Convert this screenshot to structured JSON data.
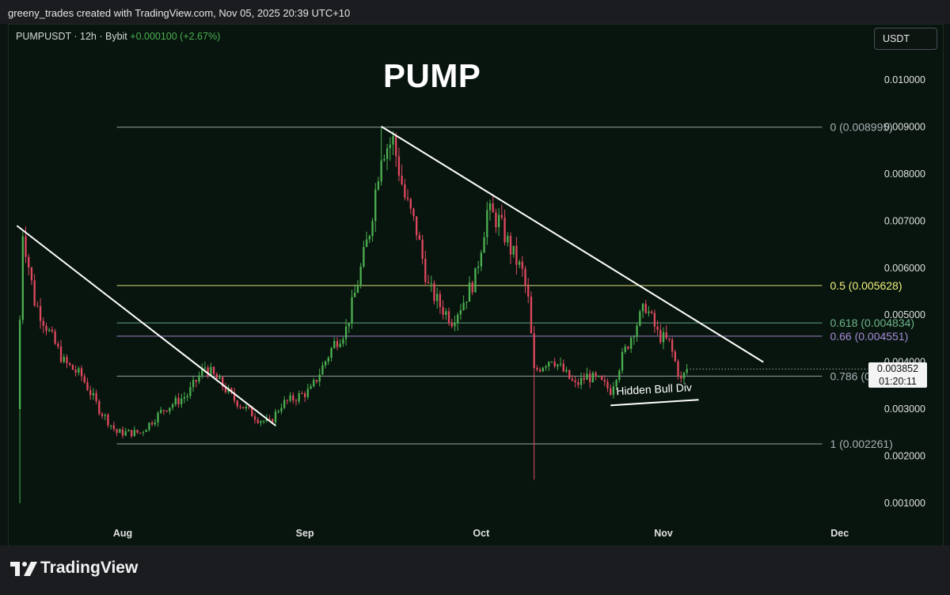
{
  "header": {
    "credit": "greeny_trades created with TradingView.com, Nov 05, 2025 20:39 UTC+10"
  },
  "symbol": {
    "label": "PUMPUSDT · 12h · Bybit",
    "change": "+0.000100 (+2.67%)"
  },
  "currency_button": "USDT",
  "current_price": {
    "price": "0.003852",
    "countdown": "01:20:11"
  },
  "footer": {
    "brand": "TradingView"
  },
  "colors": {
    "background": "#07150e",
    "up": "#4caf50",
    "down": "#e0485e",
    "trendline": "#ffffff",
    "fib_0_5": "#f1ef7e",
    "fib_0_618": "#6fb48a",
    "fib_0_66": "#a88ad8",
    "fib_neutral": "#aab0b4"
  },
  "chart_data": {
    "type": "candlestick",
    "title": "PUMP",
    "price_ticks": [
      "0.010000",
      "0.009000",
      "0.008000",
      "0.007000",
      "0.006000",
      "0.005000",
      "0.004000",
      "0.003000",
      "0.002000",
      "0.001000"
    ],
    "time_ticks": [
      "Aug",
      "Sep",
      "Oct",
      "Nov",
      "Dec"
    ],
    "ylim": [
      0.00055,
      0.011
    ],
    "fib_levels": [
      {
        "ratio": "0",
        "price": 0.008995,
        "label": "0 (0.008995)",
        "color": "#aab0b4"
      },
      {
        "ratio": "0.5",
        "price": 0.005628,
        "label": "0.5 (0.005628)",
        "color": "#f1ef7e"
      },
      {
        "ratio": "0.618",
        "price": 0.004834,
        "label": "0.618 (0.004834)",
        "color": "#6fb48a"
      },
      {
        "ratio": "0.66",
        "price": 0.004551,
        "label": "0.66 (0.004551)",
        "color": "#a88ad8"
      },
      {
        "ratio": "0.786",
        "price": 0.003702,
        "label": "0.786 (0.003702)",
        "color": "#aab0b4"
      },
      {
        "ratio": "1",
        "price": 0.002261,
        "label": "1 (0.002261)",
        "color": "#aab0b4"
      }
    ],
    "trendlines": [
      {
        "name": "downtrend-1",
        "from": [
          "2025-07-14",
          0.0069
        ],
        "to": [
          "2025-08-27",
          0.00265
        ]
      },
      {
        "name": "downtrend-2",
        "from": [
          "2025-09-14",
          0.00901
        ],
        "to": [
          "2025-11-18",
          0.004
        ]
      },
      {
        "name": "hidden-bull-div",
        "from": [
          "2025-10-23",
          0.00308
        ],
        "to": [
          "2025-11-07",
          0.0032
        ]
      }
    ],
    "annotations": [
      {
        "text": "Hidden Bull Div",
        "at": [
          "2025-10-24",
          0.0033
        ]
      }
    ],
    "close_anchors": [
      [
        "2025-07-14",
        0.003
      ],
      [
        "2025-07-15",
        0.0068
      ],
      [
        "2025-07-17",
        0.0053
      ],
      [
        "2025-07-20",
        0.0045
      ],
      [
        "2025-07-22",
        0.004
      ],
      [
        "2025-07-25",
        0.0037
      ],
      [
        "2025-07-28",
        0.003
      ],
      [
        "2025-07-31",
        0.0025
      ],
      [
        "2025-08-04",
        0.0025
      ],
      [
        "2025-08-08",
        0.003
      ],
      [
        "2025-08-12",
        0.0033
      ],
      [
        "2025-08-15",
        0.0039
      ],
      [
        "2025-08-18",
        0.0035
      ],
      [
        "2025-08-20",
        0.0032
      ],
      [
        "2025-08-24",
        0.0028
      ],
      [
        "2025-08-26",
        0.0027
      ],
      [
        "2025-08-28",
        0.0031
      ],
      [
        "2025-09-02",
        0.0034
      ],
      [
        "2025-09-06",
        0.0044
      ],
      [
        "2025-09-08",
        0.0047
      ],
      [
        "2025-09-10",
        0.0057
      ],
      [
        "2025-09-12",
        0.0068
      ],
      [
        "2025-09-14",
        0.0085
      ],
      [
        "2025-09-16",
        0.0087
      ],
      [
        "2025-09-18",
        0.0075
      ],
      [
        "2025-09-20",
        0.0068
      ],
      [
        "2025-09-22",
        0.0056
      ],
      [
        "2025-09-24",
        0.0052
      ],
      [
        "2025-09-26",
        0.0049
      ],
      [
        "2025-09-28",
        0.0053
      ],
      [
        "2025-09-30",
        0.0058
      ],
      [
        "2025-10-02",
        0.0072
      ],
      [
        "2025-10-04",
        0.007
      ],
      [
        "2025-10-06",
        0.0064
      ],
      [
        "2025-10-08",
        0.0059
      ],
      [
        "2025-10-09",
        0.0053
      ],
      [
        "2025-10-10",
        0.0038
      ],
      [
        "2025-10-13",
        0.0041
      ],
      [
        "2025-10-17",
        0.0035
      ],
      [
        "2025-10-19",
        0.0037
      ],
      [
        "2025-10-21",
        0.0036
      ],
      [
        "2025-10-23",
        0.0034
      ],
      [
        "2025-10-25",
        0.0041
      ],
      [
        "2025-10-27",
        0.0047
      ],
      [
        "2025-10-29",
        0.0052
      ],
      [
        "2025-10-31",
        0.0046
      ],
      [
        "2025-11-02",
        0.0044
      ],
      [
        "2025-11-04",
        0.0036
      ],
      [
        "2025-11-05",
        0.003852
      ]
    ],
    "wick_extremes": [
      {
        "date": "2025-07-14",
        "low": 0.001
      },
      {
        "date": "2025-10-10",
        "low": 0.0015
      },
      {
        "date": "2025-09-14",
        "high": 0.00901
      }
    ]
  }
}
